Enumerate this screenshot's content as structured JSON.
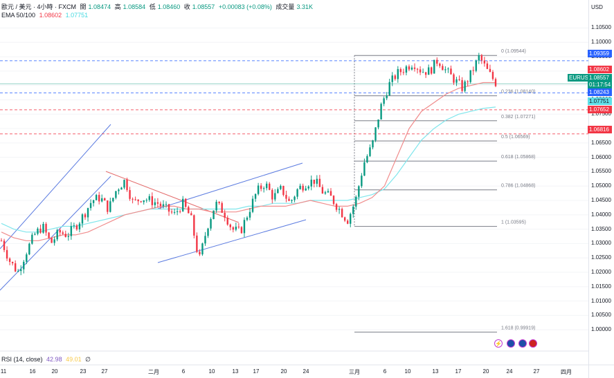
{
  "header": {
    "symbol": "歐元 / 美元 · 4小時 · FXCM",
    "open_label": "開",
    "open": "1.08474",
    "high_label": "高",
    "high": "1.08584",
    "low_label": "低",
    "low": "1.08460",
    "close_label": "收",
    "close": "1.08557",
    "change": "+0.00083 (+0.08%)",
    "volume_label": "成交量",
    "volume": "3.31K",
    "ema_label": "EMA 50/100",
    "ema50": "1.08602",
    "ema100": "1.07751"
  },
  "currency": "USD",
  "price_axis": [
    "1.10500",
    "1.10000",
    "1.09500",
    "1.09000",
    "1.08500",
    "1.08000",
    "1.07500",
    "1.07000",
    "1.06500",
    "1.06000",
    "1.05500",
    "1.05000",
    "1.04500",
    "1.04000",
    "1.03500",
    "1.03000",
    "1.02500",
    "1.02000",
    "1.01500",
    "1.01000",
    "1.00500",
    "1.00000"
  ],
  "price_tags": [
    {
      "value": "1.09359",
      "color": "#2962ff",
      "text_color": "#ffffff"
    },
    {
      "value": "1.08602",
      "color": "#f23645",
      "text_color": "#ffffff"
    },
    {
      "value": "EURUSD",
      "color": "#089981",
      "text_color": "#ffffff"
    },
    {
      "value": "1.08557",
      "color": "#089981",
      "text_color": "#ffffff"
    },
    {
      "value": "01:17:54",
      "color": "#089981",
      "text_color": "#ffffff"
    },
    {
      "value": "1.08243",
      "color": "#2962ff",
      "text_color": "#ffffff"
    },
    {
      "value": "1.07751",
      "color": "#5fe0e8",
      "text_color": "#131722"
    },
    {
      "value": "1.07652",
      "color": "#f23645",
      "text_color": "#ffffff"
    },
    {
      "value": "1.06816",
      "color": "#f23645",
      "text_color": "#ffffff"
    }
  ],
  "date_labels": [
    "11",
    "16",
    "20",
    "23",
    "27",
    "二月",
    "6",
    "10",
    "13",
    "17",
    "20",
    "24",
    "三月",
    "6",
    "10",
    "13",
    "17",
    "20",
    "24",
    "27",
    "四月"
  ],
  "rsi": {
    "label": "RSI (14, close)",
    "v1": "42.98",
    "v2": "49.01",
    "v3": "∅"
  },
  "chart_data": {
    "type": "candlestick",
    "title": "歐元 / 美元 · 4小時 · FXCM",
    "y_range": [
      0.995,
      1.108
    ],
    "fib_levels": [
      {
        "label": "0 (1.09544)",
        "value": 1.09544
      },
      {
        "label": "0.236 (1.08140)",
        "value": 1.0814
      },
      {
        "label": "0.382 (1.07271)",
        "value": 1.07271
      },
      {
        "label": "0.5 (1.06569)",
        "value": 1.06569
      },
      {
        "label": "0.618 (1.05868)",
        "value": 1.05868
      },
      {
        "label": "0.786 (1.04868)",
        "value": 1.04868
      },
      {
        "label": "1 (1.03595)",
        "value": 1.03595
      },
      {
        "label": "1.618 (0.99919)",
        "value": 0.99919
      }
    ],
    "horizontal_lines": [
      {
        "value": 1.09359,
        "style": "dashed",
        "color": "#2962ff"
      },
      {
        "value": 1.08243,
        "style": "dashed",
        "color": "#2962ff"
      },
      {
        "value": 1.07652,
        "style": "dashed",
        "color": "#f23645"
      },
      {
        "value": 1.06816,
        "style": "dashed",
        "color": "#f23645"
      },
      {
        "value": 1.08557,
        "style": "solid",
        "color": "#089981"
      }
    ],
    "close_path": [
      1.031,
      1.024,
      1.02,
      1.027,
      1.033,
      1.036,
      1.03,
      1.034,
      1.033,
      1.036,
      1.04,
      1.045,
      1.046,
      1.042,
      1.049,
      1.052,
      1.044,
      1.046,
      1.045,
      1.044,
      1.042,
      1.04,
      1.044,
      1.039,
      1.024,
      1.036,
      1.044,
      1.041,
      1.035,
      1.034,
      1.041,
      1.048,
      1.051,
      1.046,
      1.049,
      1.044,
      1.049,
      1.051,
      1.052,
      1.048,
      1.046,
      1.042,
      1.038,
      1.045,
      1.058,
      1.064,
      1.077,
      1.085,
      1.089,
      1.091,
      1.093,
      1.09,
      1.09,
      1.094,
      1.09,
      1.087,
      1.084,
      1.089,
      1.095,
      1.09,
      1.086
    ],
    "ema50_path": [
      1.034,
      1.032,
      1.031,
      1.031,
      1.032,
      1.033,
      1.033,
      1.034,
      1.036,
      1.038,
      1.04,
      1.041,
      1.042,
      1.043,
      1.043,
      1.042,
      1.042,
      1.041,
      1.041,
      1.041,
      1.042,
      1.043,
      1.043,
      1.043,
      1.044,
      1.045,
      1.044,
      1.043,
      1.043,
      1.044,
      1.046,
      1.05,
      1.06,
      1.07,
      1.076,
      1.079,
      1.082,
      1.084,
      1.085,
      1.086,
      1.086
    ],
    "ema100_path": [
      1.037,
      1.035,
      1.034,
      1.034,
      1.035,
      1.036,
      1.036,
      1.037,
      1.038,
      1.039,
      1.04,
      1.041,
      1.042,
      1.042,
      1.042,
      1.042,
      1.042,
      1.042,
      1.042,
      1.042,
      1.043,
      1.043,
      1.044,
      1.044,
      1.044,
      1.045,
      1.045,
      1.045,
      1.045,
      1.046,
      1.047,
      1.049,
      1.054,
      1.06,
      1.066,
      1.07,
      1.073,
      1.075,
      1.076,
      1.077,
      1.0775
    ]
  }
}
